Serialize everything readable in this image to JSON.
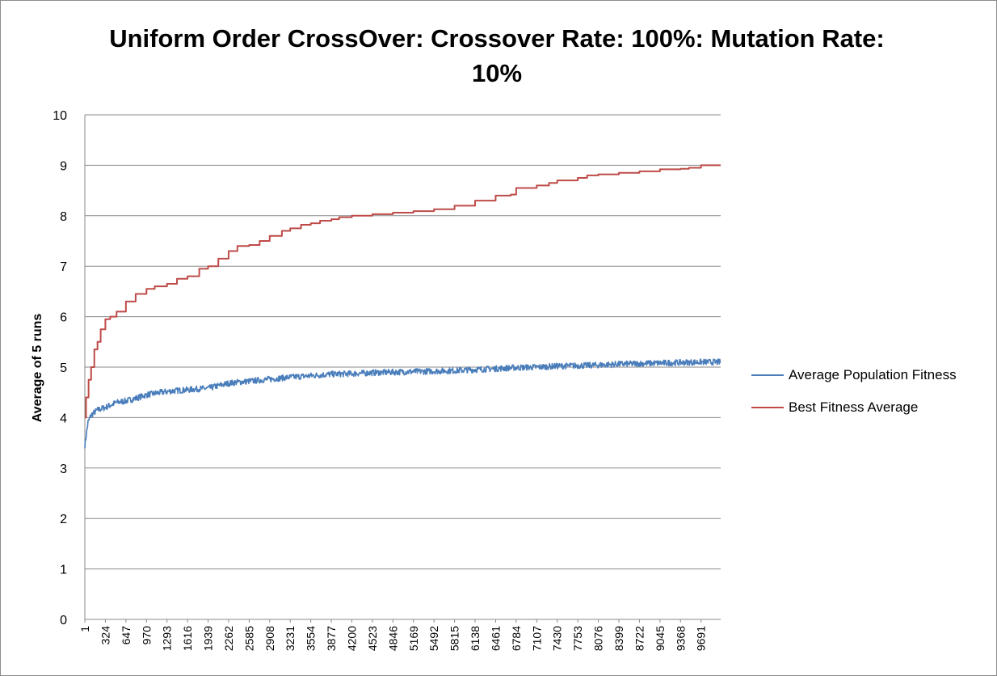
{
  "chart_data": {
    "type": "line",
    "title": "Uniform Order CrossOver: Crossover Rate: 100%: Mutation Rate: 10%",
    "xlabel": "",
    "ylabel": "Average of 5 runs",
    "ylim": [
      0,
      10
    ],
    "yticks": [
      0,
      1,
      2,
      3,
      4,
      5,
      6,
      7,
      8,
      9,
      10
    ],
    "xlim": [
      1,
      10000
    ],
    "xtick_labels": [
      "1",
      "324",
      "647",
      "970",
      "1293",
      "1616",
      "1939",
      "2262",
      "2585",
      "2908",
      "3231",
      "3554",
      "3877",
      "4200",
      "4523",
      "4846",
      "5169",
      "5492",
      "5815",
      "6138",
      "6461",
      "6784",
      "7107",
      "7430",
      "7753",
      "8076",
      "8399",
      "8722",
      "9045",
      "9368",
      "9691"
    ],
    "grid": true,
    "legend_position": "right",
    "series": [
      {
        "name": "Average Population Fitness",
        "color": "#4a7ebb",
        "x": [
          1,
          50,
          100,
          200,
          324,
          500,
          647,
          800,
          970,
          1200,
          1400,
          1616,
          1800,
          1939,
          2100,
          2262,
          2400,
          2585,
          2908,
          3231,
          3554,
          3877,
          4200,
          4523,
          4846,
          5169,
          5492,
          5815,
          6138,
          6461,
          6784,
          7107,
          7430,
          7753,
          8076,
          8399,
          8722,
          9045,
          9368,
          9691,
          10000
        ],
        "y": [
          3.45,
          3.9,
          4.05,
          4.15,
          4.2,
          4.3,
          4.33,
          4.38,
          4.45,
          4.5,
          4.53,
          4.55,
          4.57,
          4.58,
          4.63,
          4.68,
          4.7,
          4.72,
          4.76,
          4.8,
          4.83,
          4.86,
          4.87,
          4.89,
          4.9,
          4.91,
          4.92,
          4.93,
          4.95,
          4.97,
          4.99,
          5.0,
          5.02,
          5.03,
          5.04,
          5.06,
          5.07,
          5.08,
          5.09,
          5.1,
          5.1
        ],
        "noise": 0.06
      },
      {
        "name": "Best Fitness Average",
        "color": "#be4b48",
        "x": [
          1,
          20,
          60,
          100,
          150,
          200,
          250,
          324,
          400,
          500,
          647,
          800,
          970,
          1100,
          1293,
          1450,
          1616,
          1800,
          1939,
          2100,
          2262,
          2400,
          2585,
          2750,
          2908,
          3100,
          3231,
          3400,
          3554,
          3700,
          3877,
          4000,
          4200,
          4523,
          4846,
          5169,
          5492,
          5815,
          6138,
          6461,
          6700,
          6784,
          7107,
          7300,
          7430,
          7753,
          7900,
          8076,
          8399,
          8722,
          9045,
          9368,
          9500,
          9691,
          10000
        ],
        "y": [
          4.0,
          4.4,
          4.75,
          5.0,
          5.35,
          5.5,
          5.75,
          5.95,
          6.0,
          6.1,
          6.3,
          6.45,
          6.55,
          6.6,
          6.65,
          6.75,
          6.8,
          6.95,
          7.0,
          7.15,
          7.3,
          7.4,
          7.42,
          7.5,
          7.6,
          7.7,
          7.75,
          7.82,
          7.85,
          7.9,
          7.93,
          7.97,
          8.0,
          8.03,
          8.06,
          8.09,
          8.13,
          8.2,
          8.3,
          8.4,
          8.42,
          8.55,
          8.6,
          8.65,
          8.7,
          8.75,
          8.8,
          8.82,
          8.85,
          8.88,
          8.92,
          8.93,
          8.95,
          9.0,
          9.0
        ]
      }
    ]
  }
}
